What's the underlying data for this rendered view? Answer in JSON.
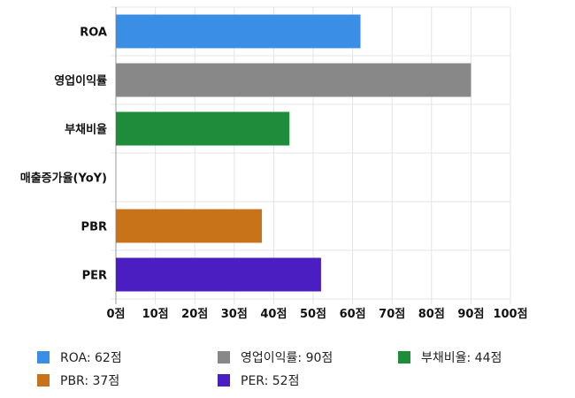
{
  "chart_data": {
    "type": "bar",
    "orientation": "horizontal",
    "categories": [
      "ROA",
      "영업이익률",
      "부채비율",
      "매출증가율(YoY)",
      "PBR",
      "PER"
    ],
    "values": [
      62,
      90,
      44,
      null,
      37,
      52
    ],
    "colors": [
      "#3a8ee6",
      "#888888",
      "#1e8c3a",
      null,
      "#c8721a",
      "#4a1ec0"
    ],
    "xlim": [
      0,
      100
    ],
    "xticks": [
      "0점",
      "10점",
      "20점",
      "30점",
      "40점",
      "50점",
      "60점",
      "70점",
      "80점",
      "90점",
      "100점"
    ],
    "grid": true,
    "legend_position": "bottom"
  },
  "legend": [
    {
      "label": "ROA: 62점",
      "color": "#3a8ee6"
    },
    {
      "label": "영업이익률: 90점",
      "color": "#888888"
    },
    {
      "label": "부채비율: 44점",
      "color": "#1e8c3a"
    },
    {
      "label": "PBR: 37점",
      "color": "#c8721a"
    },
    {
      "label": "PER: 52점",
      "color": "#4a1ec0"
    }
  ]
}
